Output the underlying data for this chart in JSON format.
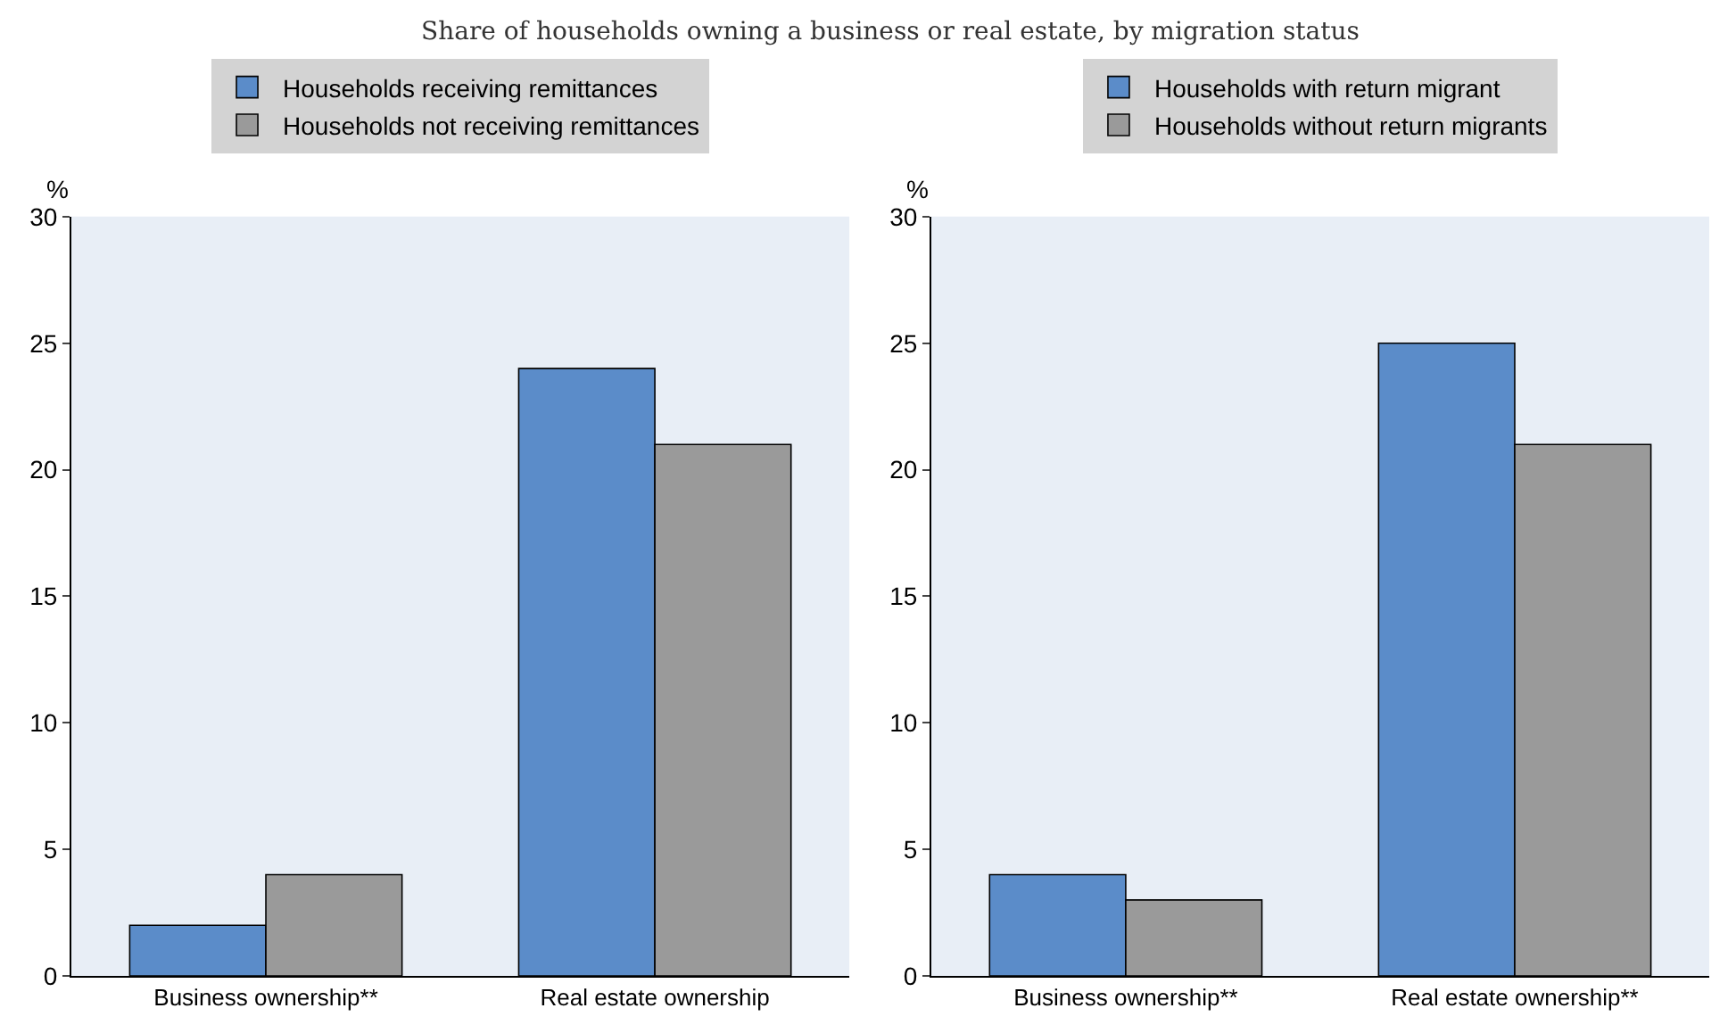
{
  "chart_data": [
    {
      "type": "bar",
      "title": "Share of households owning a business or real estate, by migration status",
      "ylabel": "%",
      "categories": [
        "Business ownership**",
        "Real estate ownership"
      ],
      "series": [
        {
          "name": "Households receiving remittances",
          "color": "#5b8cc9",
          "values": [
            2,
            24
          ]
        },
        {
          "name": "Households not receiving remittances",
          "color": "#9a9a9a",
          "values": [
            4,
            21
          ]
        }
      ],
      "ylim": [
        0,
        30
      ],
      "yticks": [
        0,
        5,
        10,
        15,
        20,
        25,
        30
      ],
      "legend": "top",
      "grid": false
    },
    {
      "type": "bar",
      "ylabel": "%",
      "categories": [
        "Business ownership**",
        "Real estate ownership**"
      ],
      "series": [
        {
          "name": "Households with return migrant",
          "color": "#5b8cc9",
          "values": [
            4,
            25
          ]
        },
        {
          "name": "Households without return migrants",
          "color": "#9a9a9a",
          "values": [
            3,
            21
          ]
        }
      ],
      "ylim": [
        0,
        30
      ],
      "yticks": [
        0,
        5,
        10,
        15,
        20,
        25,
        30
      ],
      "legend": "top",
      "grid": false
    }
  ]
}
